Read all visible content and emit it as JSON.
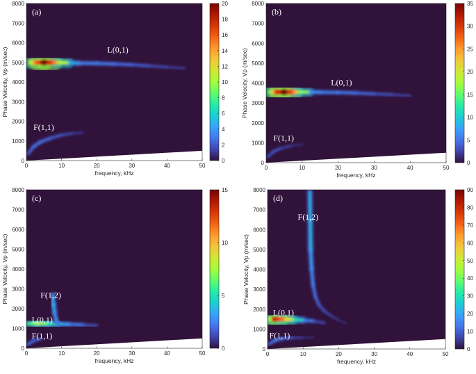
{
  "colormap": [
    "#30123b",
    "#4145ab",
    "#4675ed",
    "#39a2fc",
    "#1bcfd4",
    "#24eca6",
    "#61fc6c",
    "#a4fc3b",
    "#d1e834",
    "#f3c63a",
    "#fe9b2d",
    "#f36315",
    "#d93806",
    "#b11901",
    "#7a0403"
  ],
  "background_color": "#30123b",
  "chart_data": [
    {
      "panel": "(a)",
      "type": "heatmap",
      "xlabel": "frequency, kHz",
      "ylabel": "Phase Velocity, Vp (m/sec)",
      "xlim": [
        0,
        50
      ],
      "ylim": [
        0,
        8000
      ],
      "xticks": [
        0,
        10,
        20,
        30,
        40,
        50
      ],
      "yticks": [
        0,
        1000,
        2000,
        3000,
        4000,
        5000,
        6000,
        7000,
        8000
      ],
      "colorbar": {
        "min": 0,
        "max": 20,
        "ticks": [
          0,
          2,
          4,
          6,
          8,
          10,
          12,
          14,
          16,
          18,
          20
        ]
      },
      "annotations": [
        {
          "text": "L(0,1)",
          "x": 23,
          "y": 5500
        },
        {
          "text": "F(1,1)",
          "x": 2,
          "y": 1550
        }
      ],
      "ridges": [
        {
          "mode": "L(0,1)",
          "points": [
            [
              1,
              5000,
              10
            ],
            [
              3,
              5000,
              16
            ],
            [
              5,
              5000,
              20
            ],
            [
              8,
              5000,
              15
            ],
            [
              12,
              4980,
              6
            ],
            [
              15,
              4960,
              3.5
            ],
            [
              20,
              4950,
              3.5
            ],
            [
              25,
              4920,
              3
            ],
            [
              30,
              4880,
              2.5
            ],
            [
              35,
              4820,
              2
            ],
            [
              40,
              4760,
              1.5
            ],
            [
              45,
              4700,
              1
            ]
          ]
        },
        {
          "mode": "F(1,1)",
          "points": [
            [
              0.5,
              350,
              2
            ],
            [
              2,
              700,
              3
            ],
            [
              4,
              950,
              3
            ],
            [
              7,
              1150,
              2.5
            ],
            [
              10,
              1300,
              2
            ],
            [
              13,
              1380,
              1.5
            ],
            [
              16,
              1420,
              0.8
            ]
          ]
        }
      ]
    },
    {
      "panel": "(b)",
      "type": "heatmap",
      "xlabel": "frequency, kHz",
      "ylabel": "Phase Velocity, Vp (m/sec)",
      "xlim": [
        0,
        50
      ],
      "ylim": [
        0,
        8000
      ],
      "xticks": [
        0,
        10,
        20,
        30,
        40,
        50
      ],
      "yticks": [
        0,
        1000,
        2000,
        3000,
        4000,
        5000,
        6000,
        7000,
        8000
      ],
      "colorbar": {
        "min": 0,
        "max": 35,
        "ticks": [
          0,
          5,
          10,
          15,
          20,
          25,
          30,
          35
        ]
      },
      "annotations": [
        {
          "text": "L(0,1)",
          "x": 18,
          "y": 3900
        },
        {
          "text": "F(1,1)",
          "x": 2,
          "y": 1100
        }
      ],
      "ridges": [
        {
          "mode": "L(0,1)",
          "points": [
            [
              1,
              3550,
              16
            ],
            [
              3,
              3550,
              30
            ],
            [
              5,
              3550,
              35
            ],
            [
              8,
              3550,
              25
            ],
            [
              12,
              3550,
              8
            ],
            [
              15,
              3540,
              6
            ],
            [
              20,
              3530,
              6
            ],
            [
              25,
              3500,
              5
            ],
            [
              30,
              3460,
              4
            ],
            [
              35,
              3420,
              3
            ],
            [
              40,
              3360,
              2
            ]
          ]
        },
        {
          "mode": "F(1,1)",
          "points": [
            [
              0.5,
              300,
              3
            ],
            [
              2,
              550,
              4
            ],
            [
              4,
              720,
              3
            ],
            [
              7,
              850,
              2
            ],
            [
              10,
              920,
              1
            ]
          ]
        }
      ]
    },
    {
      "panel": "(c)",
      "type": "heatmap",
      "xlabel": "frequency, kHz",
      "ylabel": "Phase Velocity, Vp (m/sec)",
      "xlim": [
        0,
        50
      ],
      "ylim": [
        0,
        8000
      ],
      "xticks": [
        0,
        10,
        20,
        30,
        40,
        50
      ],
      "yticks": [
        0,
        1000,
        2000,
        3000,
        4000,
        5000,
        6000,
        7000,
        8000
      ],
      "colorbar": {
        "min": 0,
        "max": 15,
        "ticks": [
          0,
          5,
          10,
          15
        ]
      },
      "annotations": [
        {
          "text": "F(1,2)",
          "x": 4,
          "y": 2550
        },
        {
          "text": "L(0,1)",
          "x": 1.5,
          "y": 1300
        },
        {
          "text": "F(1,1)",
          "x": 1.5,
          "y": 500
        }
      ],
      "ridges": [
        {
          "mode": "L(0,1)",
          "points": [
            [
              0.5,
              1250,
              5
            ],
            [
              3,
              1250,
              8
            ],
            [
              6,
              1240,
              6
            ],
            [
              9,
              1230,
              4
            ],
            [
              12,
              1210,
              3
            ],
            [
              16,
              1180,
              2
            ],
            [
              20,
              1150,
              1
            ]
          ]
        },
        {
          "mode": "F(1,2)",
          "points": [
            [
              7.5,
              2700,
              3
            ],
            [
              7.7,
              2200,
              4
            ],
            [
              8,
              1800,
              3
            ],
            [
              8.5,
              1400,
              3
            ],
            [
              9,
              1250,
              2
            ]
          ]
        },
        {
          "mode": "F(1,1)",
          "points": [
            [
              0.5,
              200,
              2
            ],
            [
              2,
              380,
              2
            ],
            [
              4,
              470,
              1.5
            ]
          ]
        }
      ]
    },
    {
      "panel": "(d)",
      "type": "heatmap",
      "xlabel": "frequency, kHz",
      "ylabel": "Phase Velocity, Vp (m/sec)",
      "xlim": [
        0,
        50
      ],
      "ylim": [
        0,
        8000
      ],
      "xticks": [
        0,
        10,
        20,
        30,
        40,
        50
      ],
      "yticks": [
        0,
        1000,
        2000,
        3000,
        4000,
        5000,
        6000,
        7000,
        8000
      ],
      "colorbar": {
        "min": 0,
        "max": 90,
        "ticks": [
          0,
          10,
          20,
          30,
          40,
          50,
          60,
          70,
          80,
          90
        ]
      },
      "annotations": [
        {
          "text": "F(1,2)",
          "x": 8.5,
          "y": 6500
        },
        {
          "text": "L(0,1)",
          "x": 1.5,
          "y": 1700
        },
        {
          "text": "F(1,1)",
          "x": 0.5,
          "y": 550
        }
      ],
      "ridges": [
        {
          "mode": "L(0,1)",
          "points": [
            [
              0.5,
              1500,
              40
            ],
            [
              2,
              1500,
              80
            ],
            [
              4,
              1500,
              70
            ],
            [
              7,
              1480,
              40
            ],
            [
              10,
              1450,
              20
            ],
            [
              13,
              1400,
              10
            ],
            [
              16,
              1300,
              5
            ]
          ]
        },
        {
          "mode": "F(1,2)",
          "points": [
            [
              11.9,
              7900,
              20
            ],
            [
              12,
              6500,
              25
            ],
            [
              12.1,
              5000,
              22
            ],
            [
              12.4,
              4000,
              18
            ],
            [
              12.8,
              3200,
              15
            ],
            [
              13.5,
              2600,
              12
            ],
            [
              14.5,
              2200,
              10
            ],
            [
              16,
              1900,
              8
            ],
            [
              18,
              1650,
              6
            ],
            [
              20,
              1450,
              4
            ],
            [
              22,
              1300,
              2
            ]
          ]
        },
        {
          "mode": "F(1,1)",
          "points": [
            [
              0.5,
              250,
              10
            ],
            [
              2,
              420,
              15
            ],
            [
              4,
              520,
              12
            ],
            [
              7,
              560,
              8
            ],
            [
              10,
              580,
              4
            ],
            [
              13,
              590,
              2
            ]
          ]
        }
      ]
    }
  ]
}
